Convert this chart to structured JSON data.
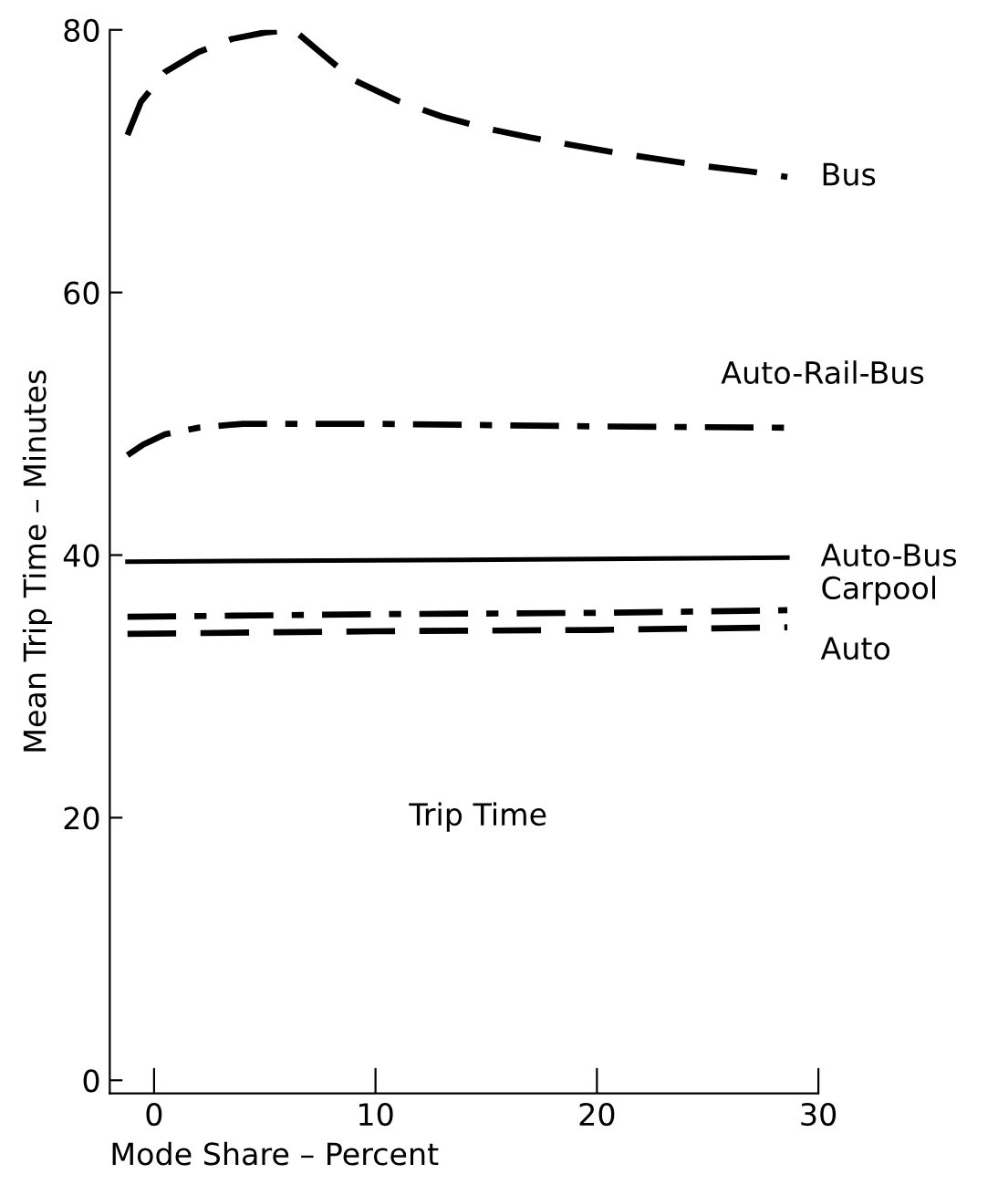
{
  "chart_data": {
    "type": "line",
    "xlabel": "Mode Share – Percent",
    "ylabel": "Mean Trip Time – Minutes",
    "xlim": [
      -2,
      30
    ],
    "xticks": [
      0,
      10,
      20,
      30
    ],
    "ylim": [
      -1,
      80
    ],
    "yticks": [
      0,
      20,
      40,
      60,
      80
    ],
    "grid": false,
    "legend": false,
    "marker": "none",
    "annotations": [
      "Trip Time"
    ],
    "series": [
      {
        "name": "Bus",
        "color": "#000000",
        "line_style": "dashed",
        "x": [
          -1.2,
          -0.6,
          0.5,
          2,
          3.5,
          5,
          6.3,
          7.5,
          9,
          11,
          13,
          15,
          17,
          19,
          21,
          23,
          25,
          27,
          28.6
        ],
        "values": [
          72,
          74.5,
          76.8,
          78.3,
          79.3,
          79.8,
          80,
          78.3,
          76.2,
          74.6,
          73.4,
          72.5,
          71.8,
          71.2,
          70.6,
          70.1,
          69.6,
          69.2,
          68.8
        ]
      },
      {
        "name": "Auto-Rail-Bus",
        "color": "#000000",
        "line_style": "dashdot",
        "x": [
          -1.2,
          -0.5,
          0.5,
          2,
          4,
          6,
          10,
          20,
          28.6
        ],
        "values": [
          47.6,
          48.4,
          49.2,
          49.7,
          50,
          50,
          50,
          49.8,
          49.7
        ]
      },
      {
        "name": "Auto-Bus",
        "color": "#000000",
        "line_style": "solid",
        "x": [
          -1.2,
          10,
          20,
          28.6
        ],
        "values": [
          39.5,
          39.6,
          39.7,
          39.8
        ]
      },
      {
        "name": "Carpool",
        "color": "#000000",
        "line_style": "dashdot",
        "x": [
          -1.2,
          10,
          20,
          28.6
        ],
        "values": [
          35.3,
          35.5,
          35.6,
          35.8
        ]
      },
      {
        "name": "Auto",
        "color": "#000000",
        "line_style": "dashed",
        "x": [
          -1.2,
          10,
          20,
          28.6
        ],
        "values": [
          34,
          34.2,
          34.3,
          34.5
        ]
      }
    ]
  }
}
